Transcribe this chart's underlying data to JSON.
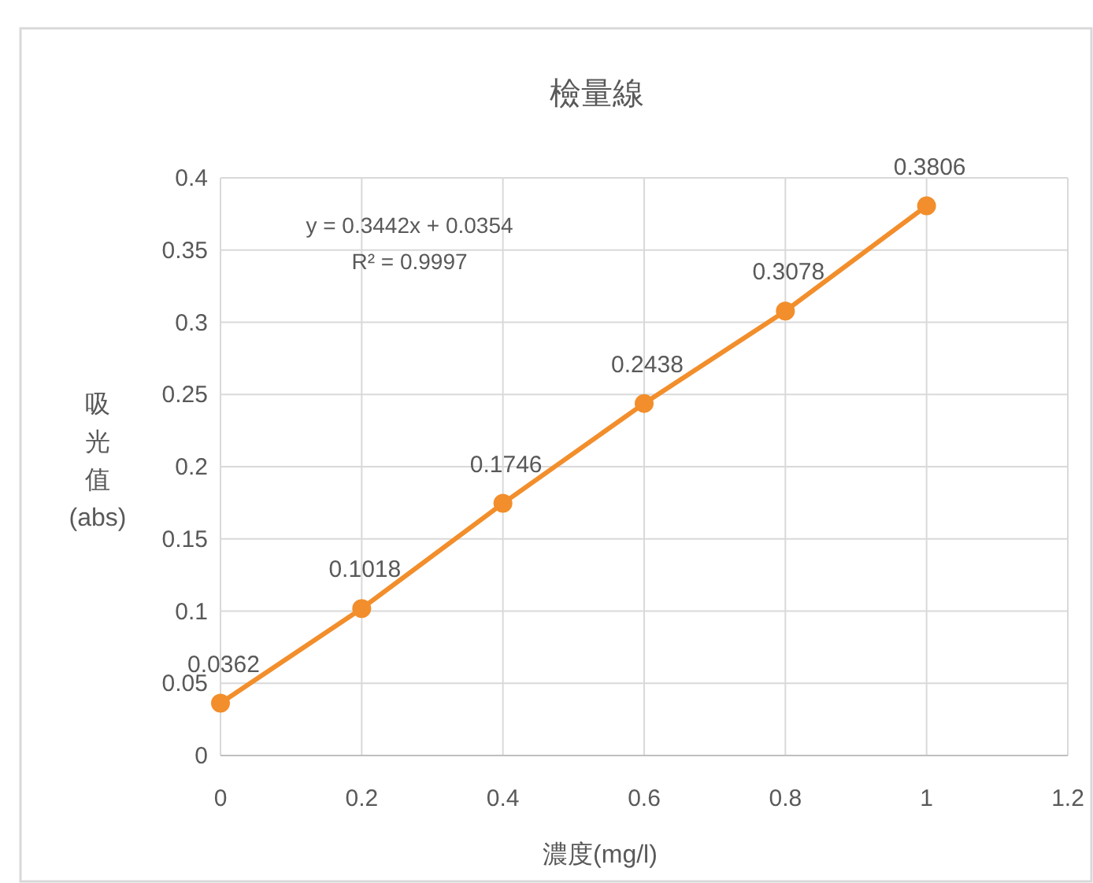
{
  "chart_data": {
    "type": "line",
    "title": "檢量線",
    "xlabel": "濃度(mg/l)",
    "ylabel": "吸光值(abs)",
    "x": [
      0,
      0.2,
      0.4,
      0.6,
      0.8,
      1
    ],
    "series": [
      {
        "color": "#f28e2b",
        "values": [
          0.0362,
          0.1018,
          0.1746,
          0.2438,
          0.3078,
          0.3806
        ]
      }
    ],
    "xlim": [
      0,
      1.2
    ],
    "xticks": [
      0,
      0.2,
      0.4,
      0.6,
      0.8,
      1,
      1.2
    ],
    "ylim": [
      0,
      0.4
    ],
    "yticks": [
      0,
      0.05,
      0.1,
      0.15,
      0.2,
      0.25,
      0.3,
      0.35,
      0.4
    ],
    "grid": true,
    "marker": "circle",
    "line_style": "solid",
    "data_labels": true,
    "annotations": [
      "y = 0.3442x + 0.0354",
      "R² = 0.9997"
    ]
  }
}
